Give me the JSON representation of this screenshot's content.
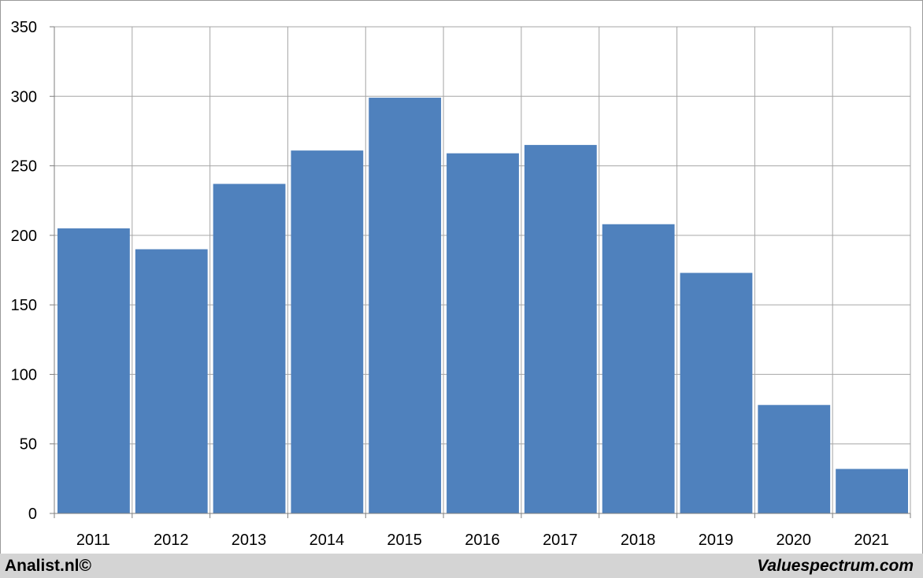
{
  "chart_data": {
    "type": "bar",
    "categories": [
      "2011",
      "2012",
      "2013",
      "2014",
      "2015",
      "2016",
      "2017",
      "2018",
      "2019",
      "2020",
      "2021"
    ],
    "values": [
      205,
      190,
      237,
      261,
      299,
      259,
      265,
      208,
      173,
      78,
      32
    ],
    "title": "",
    "xlabel": "",
    "ylabel": "",
    "ylim": [
      0,
      350
    ],
    "yticks": [
      "0",
      "50",
      "100",
      "150",
      "200",
      "250",
      "300",
      "350"
    ],
    "grid": true,
    "bar_color": "#4f81bd",
    "grid_color": "#a6a6a6"
  },
  "footer": {
    "left_text": "Analist.nl©",
    "right_text": "Valuespectrum.com",
    "background": "#d4d4d4"
  }
}
